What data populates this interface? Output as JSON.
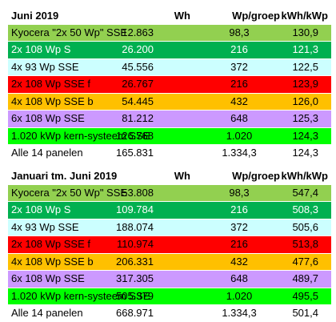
{
  "tables": [
    {
      "header": [
        "Juni 2019",
        "Wh",
        "Wp/groep",
        "kWh/kWp"
      ],
      "rows": [
        {
          "name": "Kyocera \"2x 50 Wp\" SSE",
          "wh": "12.863",
          "wp": "98,3",
          "kwh": "130,9",
          "bg": "#92d050",
          "fg": "#000000"
        },
        {
          "name": "2x 108 Wp S",
          "wh": "26.200",
          "wp": "216",
          "kwh": "121,3",
          "bg": "#00b050",
          "fg": "#ffffff"
        },
        {
          "name": "4x 93 Wp SSE",
          "wh": "45.556",
          "wp": "372",
          "kwh": "122,5",
          "bg": "#ccffff",
          "fg": "#000000"
        },
        {
          "name": "2x 108 Wp SSE f",
          "wh": "26.767",
          "wp": "216",
          "kwh": "123,9",
          "bg": "#ff0000",
          "fg": "#000000"
        },
        {
          "name": "4x 108 Wp SSE b",
          "wh": "54.445",
          "wp": "432",
          "kwh": "126,0",
          "bg": "#ffc000",
          "fg": "#000000"
        },
        {
          "name": "6x 108 Wp SSE",
          "wh": "81.212",
          "wp": "648",
          "kwh": "125,3",
          "bg": "#cc99ff",
          "fg": "#000000"
        },
        {
          "name": "1.020 kWp kern-systeem SSE",
          "wh": "126.768",
          "wp": "1.020",
          "kwh": "124,3",
          "bg": "#00ff00",
          "fg": "#000000"
        },
        {
          "name": "Alle 14 panelen",
          "wh": "165.831",
          "wp": "1.334,3",
          "kwh": "124,3",
          "bg": "#ffffff",
          "fg": "#000000"
        }
      ]
    },
    {
      "header": [
        "Januari tm. Juni 2019",
        "Wh",
        "Wp/groep",
        "kWh/kWp"
      ],
      "rows": [
        {
          "name": "Kyocera \"2x 50 Wp\" SSE",
          "wh": "53.808",
          "wp": "98,3",
          "kwh": "547,4",
          "bg": "#92d050",
          "fg": "#000000"
        },
        {
          "name": "2x 108 Wp S",
          "wh": "109.784",
          "wp": "216",
          "kwh": "508,3",
          "bg": "#00b050",
          "fg": "#ffffff"
        },
        {
          "name": "4x 93 Wp SSE",
          "wh": "188.074",
          "wp": "372",
          "kwh": "505,6",
          "bg": "#ccffff",
          "fg": "#000000"
        },
        {
          "name": "2x 108 Wp SSE f",
          "wh": "110.974",
          "wp": "216",
          "kwh": "513,8",
          "bg": "#ff0000",
          "fg": "#000000"
        },
        {
          "name": "4x 108 Wp SSE b",
          "wh": "206.331",
          "wp": "432",
          "kwh": "477,6",
          "bg": "#ffc000",
          "fg": "#000000"
        },
        {
          "name": "6x 108 Wp SSE",
          "wh": "317.305",
          "wp": "648",
          "kwh": "489,7",
          "bg": "#cc99ff",
          "fg": "#000000"
        },
        {
          "name": "1.020 kWp kern-systeem SSE",
          "wh": "505.379",
          "wp": "1.020",
          "kwh": "495,5",
          "bg": "#00ff00",
          "fg": "#000000"
        },
        {
          "name": "Alle 14 panelen",
          "wh": "668.971",
          "wp": "1.334,3",
          "kwh": "501,4",
          "bg": "#ffffff",
          "fg": "#000000"
        }
      ]
    }
  ]
}
